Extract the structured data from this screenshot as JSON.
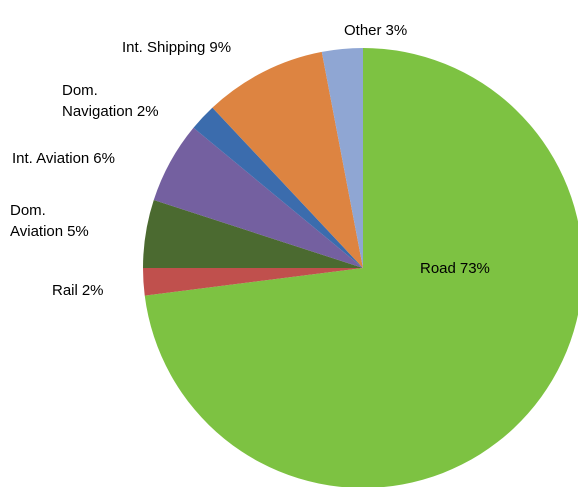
{
  "chart_data": {
    "type": "pie",
    "categories": [
      "Road",
      "Rail",
      "Dom. Aviation",
      "Int. Aviation",
      "Dom. Navigation",
      "Int. Shipping",
      "Other"
    ],
    "values": [
      73,
      2,
      5,
      6,
      2,
      9,
      3
    ],
    "value_labels": [
      "73%",
      "2%",
      "5%",
      "6%",
      "2%",
      "9%",
      "3%"
    ],
    "colors": [
      "#7dc242",
      "#c0504d",
      "#4b6a30",
      "#7460a0",
      "#3b6cad",
      "#dd8441",
      "#8fa6d3"
    ]
  }
}
